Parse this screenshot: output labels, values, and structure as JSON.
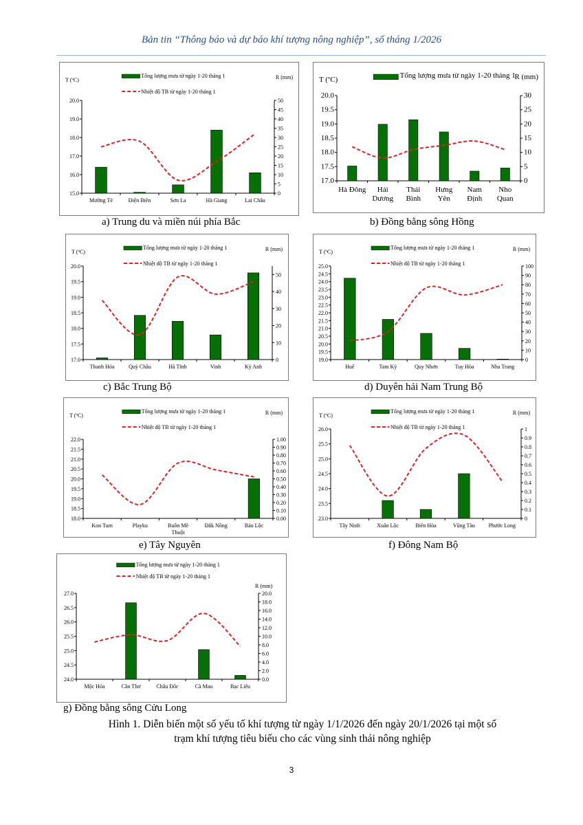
{
  "header": "Bản tin “Thông báo và dự báo khí tượng nông nghiệp”, số tháng 1/2026",
  "figure_caption_line1": "Hình 1. Diễn biến một số yếu tố khí tượng từ ngày 1/1/2026 đến ngày 20/1/2026 tại một số",
  "figure_caption_line2": "trạm khí tượng tiêu biểu cho các vùng sinh thái nông nghiệp",
  "page_number": "3",
  "colors": {
    "bar": "#067006",
    "line": "#e02020",
    "header": "#1f4e9a"
  },
  "chart_data": [
    {
      "type": "bar+line",
      "caption": "a)  Trung du và miền núi phía Bắc",
      "left_label": "T (ºC)",
      "right_label": "R (mm)",
      "legend_rain": "Tổng lượng mưa từ ngày 1-20 tháng 1",
      "legend_temp": "Nhiệt độ TB từ ngày 1-20 tháng 1",
      "categories": [
        "Mường Tè",
        "Điện Biên",
        "Sơn La",
        "Hà Giang",
        "Lai Châu"
      ],
      "rain_mm": [
        14,
        0.5,
        4.5,
        34,
        11
      ],
      "temp_c": [
        17.5,
        17.8,
        15.7,
        16.7,
        18.2
      ],
      "tlim": [
        15,
        20
      ],
      "tstep": 1,
      "tdec": 1,
      "rlim": [
        0,
        50
      ],
      "rstep": 5,
      "rdec": 0
    },
    {
      "type": "bar+line",
      "caption": "b)  Đồng bằng sông Hồng",
      "left_label": "T (ºC)",
      "right_label": "R (mm)",
      "legend_rain": "Tổng lượng mưa từ ngày 1-20 tháng 1",
      "legend_temp": null,
      "categories": [
        "Hà Đông",
        "Hải\nDương",
        "Thái\nBình",
        "Hưng\nYên",
        "Nam\nĐịnh",
        "Nho\nQuan"
      ],
      "rain_mm": [
        5.2,
        19.9,
        21.5,
        17.2,
        3.4,
        4.5
      ],
      "temp_c": [
        18.2,
        17.8,
        18.1,
        18.25,
        18.4,
        18.1
      ],
      "tlim": [
        17,
        20
      ],
      "tstep": 0.5,
      "tdec": 1,
      "rlim": [
        0,
        30
      ],
      "rstep": 5,
      "rdec": 0
    },
    {
      "type": "bar+line",
      "caption": "c)  Bắc Trung Bộ",
      "left_label": "T (ºC)",
      "right_label": "R (mm)",
      "legend_rain": "Tổng lượng mưa từ ngày 1-20 tháng 1",
      "legend_temp": "Nhiệt độ TB từ ngày 1-20 tháng 1",
      "categories": [
        "Thanh Hóa",
        "Quỳ Châu",
        "Hà Tĩnh",
        "Vinh",
        "Kỳ Anh"
      ],
      "rain_mm": [
        1,
        26,
        22.5,
        14.5,
        51
      ],
      "temp_c": [
        18.9,
        17.8,
        19.65,
        19.1,
        19.5
      ],
      "tlim": [
        17,
        20
      ],
      "tstep": 0.5,
      "tdec": 1,
      "rlim": [
        0,
        55
      ],
      "rstep": 10,
      "rdec": 0
    },
    {
      "type": "bar+line",
      "caption": "d)  Duyên hải Nam Trung Bộ",
      "left_label": "T (ºC)",
      "right_label": "R (mm)",
      "legend_rain": "Tổng lượng mưa từ ngày 1-20 tháng 1",
      "legend_temp": "Nhiệt độ TB từ ngày 1-20 tháng 1",
      "categories": [
        "Huế",
        "Tam Kỳ",
        "Quy Nhơn",
        "Tuy Hòa",
        "Nha Trang"
      ],
      "rain_mm": [
        87,
        43,
        28,
        12,
        0.5
      ],
      "temp_c": [
        20.2,
        20.8,
        23.6,
        23.15,
        23.8
      ],
      "tlim": [
        19,
        25
      ],
      "tstep": 0.5,
      "tdec": 1,
      "rlim": [
        0,
        100
      ],
      "rstep": 10,
      "rdec": 0
    },
    {
      "type": "bar+line",
      "caption": "e)  Tây Nguyên",
      "left_label": "T (ºC)",
      "right_label": "R (mm)",
      "legend_rain": "Tổng lượng mưa từ ngày 1-20 tháng 1",
      "legend_temp": "Nhiệt độ TB từ ngày 1-20 tháng 1",
      "categories": [
        "Kon Tum",
        "Playku",
        "Buôn Mê\nThuột",
        "Đắk Nông",
        "Bảo Lộc"
      ],
      "rain_mm": [
        0,
        0,
        0,
        0,
        0.5
      ],
      "temp_c": [
        20.2,
        18.7,
        20.8,
        20.45,
        20.1
      ],
      "tlim": [
        18,
        22
      ],
      "tstep": 0.5,
      "tdec": 1,
      "rlim": [
        0,
        1
      ],
      "rstep": 0.1,
      "rdec": 2
    },
    {
      "type": "bar+line",
      "caption": "f)  Đông Nam Bộ",
      "left_label": "T (ºC)",
      "right_label": "R (mm)",
      "legend_rain": "Tổng lượng mưa từ ngày 1-20 tháng 1",
      "legend_temp": "Nhiệt độ TB từ ngày 1-20 tháng 1",
      "categories": [
        "Tây Ninh",
        "Xuân Lộc",
        "Biên Hòa",
        "Vũng Tàu",
        "Phước Long"
      ],
      "rain_mm": [
        0,
        0.2,
        0.1,
        0.5,
        0
      ],
      "temp_c": [
        25.45,
        23.75,
        25.35,
        25.8,
        24.25
      ],
      "tlim": [
        23,
        26
      ],
      "tstep": 0.5,
      "tdec": 1,
      "rlim": [
        0,
        1
      ],
      "rstep": 0.1,
      "rdec": -1
    },
    {
      "type": "bar+line",
      "caption": "g)  Đồng bằng sông Cửu Long",
      "left_label": null,
      "right_label": "R (mm)",
      "legend_rain": "Tổng lượng mưa từ ngày 1-20 tháng 1",
      "legend_temp": "Nhiệt độ TB từ ngày 1-20 tháng 1",
      "categories": [
        "Mộc Hóa",
        "Cần Thơ",
        "Châu Đốc",
        "Cà Mau",
        "Bạc Liêu"
      ],
      "rain_mm": [
        0,
        17.8,
        0,
        6.9,
        0.9
      ],
      "temp_c": [
        25.3,
        25.55,
        25.35,
        26.3,
        25.15
      ],
      "tlim": [
        24,
        27
      ],
      "tstep": 0.5,
      "tdec": 1,
      "rlim": [
        0,
        20
      ],
      "rstep": 2,
      "rdec": 1
    }
  ]
}
